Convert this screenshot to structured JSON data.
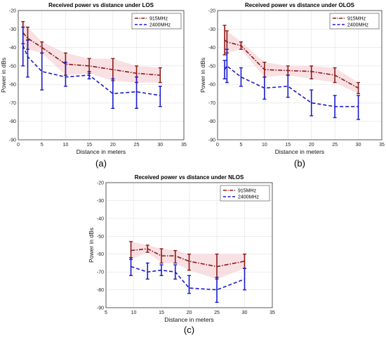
{
  "chart_data": [
    {
      "type": "line",
      "title": "Received power vs distance under LOS",
      "xlabel": "Distance in meters",
      "ylabel": "Power in dBs",
      "panel_label": "(a)",
      "xlim": [
        0,
        35
      ],
      "ylim": [
        -90,
        -20
      ],
      "xticks": [
        0,
        5,
        10,
        15,
        20,
        25,
        30,
        35
      ],
      "yticks": [
        -90,
        -80,
        -70,
        -60,
        -50,
        -40,
        -30,
        -20
      ],
      "grid": true,
      "legend": "top-right",
      "series": [
        {
          "name": "915MHz",
          "color": "#8b1a1a",
          "style": "dash-dot",
          "x": [
            1,
            2,
            5,
            10,
            15,
            20,
            25,
            30
          ],
          "y": [
            -32,
            -35,
            -40,
            -49,
            -50,
            -52,
            -54,
            -55
          ],
          "err_low": [
            -38,
            -41,
            -43,
            -55,
            -54,
            -58,
            -59,
            -59
          ],
          "err_high": [
            -26,
            -29,
            -37,
            -43,
            -46,
            -46,
            -50,
            -51
          ]
        },
        {
          "name": "2400MHz",
          "color": "#1a1acc",
          "style": "dash",
          "x": [
            1,
            2,
            5,
            10,
            15,
            20,
            25,
            30
          ],
          "y": [
            -39,
            -45,
            -53,
            -56,
            -55,
            -65,
            -64,
            -66
          ],
          "err_low": [
            -50,
            -56,
            -63,
            -61,
            -57,
            -73,
            -73,
            -72
          ],
          "err_high": [
            -29,
            -36,
            -43,
            -48,
            -53,
            -57,
            -56,
            -61
          ]
        }
      ]
    },
    {
      "type": "line",
      "title": "Received power vs distance under OLOS",
      "xlabel": "Distance in meters",
      "ylabel": "Power in dBs",
      "panel_label": "(b)",
      "xlim": [
        0,
        35
      ],
      "ylim": [
        -90,
        -20
      ],
      "xticks": [
        0,
        5,
        10,
        15,
        20,
        25,
        30,
        35
      ],
      "yticks": [
        -90,
        -80,
        -70,
        -60,
        -50,
        -40,
        -30,
        -20
      ],
      "grid": true,
      "legend": "top-right",
      "series": [
        {
          "name": "915MHz",
          "color": "#8b1a1a",
          "style": "dash-dot",
          "x": [
            1.5,
            2,
            5,
            10,
            15,
            20,
            25,
            30
          ],
          "y": [
            -36,
            -37,
            -39,
            -52,
            -52.5,
            -53,
            -55,
            -62
          ],
          "err_low": [
            -44,
            -43,
            -41,
            -56,
            -55,
            -57,
            -59,
            -65
          ],
          "err_high": [
            -28,
            -31,
            -37,
            -48,
            -50,
            -50,
            -51,
            -59
          ]
        },
        {
          "name": "2400MHz",
          "color": "#1a1acc",
          "style": "dash",
          "x": [
            1.5,
            2,
            5,
            10,
            15,
            20,
            25,
            30
          ],
          "y": [
            -52,
            -50,
            -56,
            -62,
            -61,
            -70,
            -72,
            -72
          ],
          "err_low": [
            -57,
            -59,
            -61,
            -68,
            -67,
            -77,
            -78,
            -79
          ],
          "err_high": [
            -47,
            -41,
            -51,
            -56,
            -55,
            -63,
            -66,
            -66
          ]
        }
      ]
    },
    {
      "type": "line",
      "title": "Received power vs distance under NLOS",
      "xlabel": "Distance in meters",
      "ylabel": "Power in dBs",
      "panel_label": "(c)",
      "xlim": [
        5,
        35
      ],
      "ylim": [
        -90,
        -20
      ],
      "xticks": [
        5,
        10,
        15,
        20,
        25,
        30,
        35
      ],
      "yticks": [
        -90,
        -80,
        -70,
        -60,
        -50,
        -40,
        -30,
        -20
      ],
      "grid": true,
      "legend": "top-right",
      "series": [
        {
          "name": "915MHz",
          "color": "#8b1a1a",
          "style": "dash-dot",
          "x": [
            9.5,
            12.5,
            15,
            17.5,
            20,
            25,
            30
          ],
          "y": [
            -58,
            -57,
            -61,
            -61,
            -64,
            -67,
            -64
          ],
          "err_low": [
            -63,
            -59,
            -65,
            -65,
            -69,
            -74,
            -68
          ],
          "err_high": [
            -53,
            -55,
            -57,
            -58,
            -60,
            -60,
            -60
          ]
        },
        {
          "name": "2400MHz",
          "color": "#1a1acc",
          "style": "dash",
          "x": [
            9.5,
            12.5,
            15,
            17.5,
            20,
            25,
            30
          ],
          "y": [
            -67,
            -70,
            -69,
            -70,
            -79,
            -80,
            -74
          ],
          "err_low": [
            -72,
            -74,
            -72,
            -74,
            -82,
            -87,
            -80
          ],
          "err_high": [
            -62,
            -65,
            -66,
            -66,
            -72,
            -73,
            -68
          ]
        }
      ]
    }
  ]
}
